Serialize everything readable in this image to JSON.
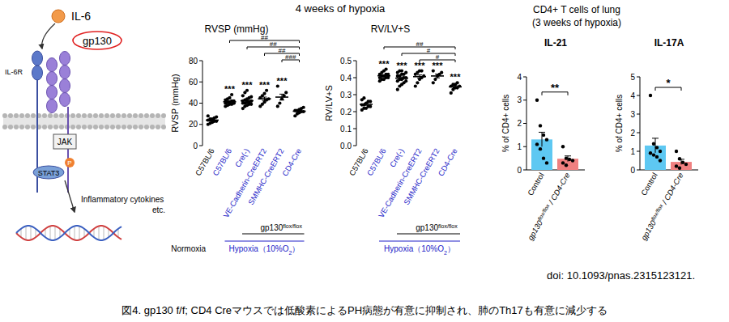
{
  "header": {
    "title": "4 weeks of hypoxia",
    "right_title": [
      "CD4+ T cells of lung",
      "(3 weeks of hypoxia)"
    ]
  },
  "diagram": {
    "ligand": "IL-6",
    "signal_receptor": "gp130",
    "receptor": "IL-6R",
    "kinase": "JAK",
    "factor": "STAT3",
    "phospho": "P",
    "output": [
      "Inflammatory cytokines",
      "etc."
    ]
  },
  "footer": {
    "doi": "doi: 10.1093/pnas.2315123121.",
    "caption": "図4. gp130 f/f; CD4 Creマウスでは低酸素によるPH病態が有意に抑制され、肺のTh17も有意に減少する"
  },
  "chart_data": [
    {
      "type": "dot",
      "title": "RVSP (mmHg)",
      "ylabel": "RVSP (mmHg)",
      "categories": [
        "C57BL/6",
        "C57BL/6",
        "Cre(-)",
        "VE-Cadherin-CreERT2",
        "SMMHC-CreERT2",
        "CD4-Cre"
      ],
      "values": [
        24.0,
        41.3,
        42.3,
        44.1,
        45.7,
        32.4
      ],
      "errors": [
        0.7,
        0.7,
        1.1,
        1.6,
        2.8,
        0.7
      ],
      "points": [
        [
          20,
          21,
          22,
          23,
          23,
          24,
          25,
          25,
          26,
          27,
          28,
          24
        ],
        [
          37,
          38,
          39,
          39,
          40,
          40,
          41,
          41,
          42,
          42,
          43,
          44,
          45,
          48,
          40
        ],
        [
          35,
          37,
          38,
          39,
          39,
          40,
          40,
          41,
          41,
          42,
          42,
          43,
          44,
          45,
          46,
          47,
          50,
          52
        ],
        [
          37,
          39,
          41,
          43,
          44,
          45,
          47,
          49,
          52
        ],
        [
          37,
          40,
          44,
          47,
          50,
          56
        ],
        [
          28,
          30,
          31,
          32,
          32,
          33,
          33,
          34,
          35,
          36
        ]
      ],
      "ylim": [
        0,
        80
      ],
      "yticks": [
        0,
        20,
        40,
        60,
        80
      ],
      "annotations": [
        {
          "category": 1,
          "text": "***"
        },
        {
          "category": 2,
          "text": "***"
        },
        {
          "category": 3,
          "text": "***"
        },
        {
          "category": 4,
          "text": "***"
        }
      ],
      "brackets": [
        {
          "from": 1,
          "to": 5,
          "text": "##"
        },
        {
          "from": 2,
          "to": 5,
          "text": "##"
        },
        {
          "from": 3,
          "to": 5,
          "text": "##"
        },
        {
          "from": 4,
          "to": 5,
          "text": "###"
        }
      ],
      "genotype": {
        "label": [
          {
            "text": "gp130"
          },
          {
            "text": "flox/flox",
            "sup": true
          }
        ],
        "from": 2,
        "to": 5
      },
      "groups": [
        {
          "label": "Normoxia",
          "from": 0,
          "to": 0,
          "color": "#000000"
        },
        {
          "label": [
            {
              "text": "Hypoxia（10%O"
            },
            {
              "text": "2",
              "sub": true
            },
            {
              "text": "）"
            }
          ],
          "from": 1,
          "to": 5,
          "color": "#2323c8"
        }
      ]
    },
    {
      "type": "dot",
      "title": "RV/LV+S",
      "ylabel": "RV/LV+S",
      "categories": [
        "C57BL/6",
        "C57BL/6",
        "Cre(-)",
        "VE-Cadherin-CreERT2",
        "SMMHC-CreERT2",
        "CD4-Cre"
      ],
      "values": [
        0.243,
        0.411,
        0.397,
        0.406,
        0.41,
        0.346
      ],
      "errors": [
        0.006,
        0.005,
        0.007,
        0.01,
        0.011,
        0.006
      ],
      "points": [
        [
          0.21,
          0.22,
          0.22,
          0.23,
          0.23,
          0.24,
          0.24,
          0.25,
          0.26,
          0.26,
          0.27,
          0.28
        ],
        [
          0.38,
          0.39,
          0.39,
          0.4,
          0.4,
          0.4,
          0.41,
          0.41,
          0.42,
          0.42,
          0.42,
          0.43,
          0.44,
          0.45,
          0.41
        ],
        [
          0.33,
          0.35,
          0.36,
          0.37,
          0.38,
          0.38,
          0.39,
          0.39,
          0.4,
          0.4,
          0.41,
          0.41,
          0.42,
          0.42,
          0.43,
          0.43,
          0.44,
          0.44
        ],
        [
          0.35,
          0.37,
          0.39,
          0.4,
          0.41,
          0.42,
          0.43,
          0.44,
          0.44
        ],
        [
          0.37,
          0.39,
          0.41,
          0.42,
          0.43,
          0.44
        ],
        [
          0.31,
          0.33,
          0.34,
          0.34,
          0.35,
          0.35,
          0.36,
          0.36,
          0.37
        ]
      ],
      "ylim": [
        0,
        0.5
      ],
      "yticks": [
        {
          "value": 0,
          "label": "0.0"
        },
        0.1,
        0.2,
        0.3,
        0.4,
        0.5
      ],
      "annotations": [
        {
          "category": 1,
          "text": "***"
        },
        {
          "category": 2,
          "text": "***"
        },
        {
          "category": 3,
          "text": "***"
        },
        {
          "category": 4,
          "text": "***"
        },
        {
          "category": 5,
          "text": "***"
        }
      ],
      "brackets": [
        {
          "from": 1,
          "to": 5,
          "text": "##"
        },
        {
          "from": 2,
          "to": 5,
          "text": "#"
        },
        {
          "from": 3,
          "to": 5,
          "text": "#"
        }
      ],
      "genotype": {
        "label": [
          {
            "text": "gp130"
          },
          {
            "text": "flox/flox",
            "sup": true
          }
        ],
        "from": 2,
        "to": 5
      },
      "groups": [
        {
          "label": [
            {
              "text": "Hypoxia（10%O"
            },
            {
              "text": "2",
              "sub": true
            },
            {
              "text": "）"
            }
          ],
          "from": 1,
          "to": 5,
          "color": "#2323c8"
        }
      ]
    },
    {
      "type": "bar",
      "title": "IL-21",
      "ylabel": "% of CD4+ cells",
      "categories": [
        "Control",
        [
          {
            "text": "gp130"
          },
          {
            "text": "flox/flox",
            "sup": true
          },
          {
            "text": " / CD4-Cre"
          }
        ]
      ],
      "values": [
        1.31,
        0.48
      ],
      "errors": [
        0.31,
        0.12
      ],
      "points": [
        [
          3.0,
          1.9,
          1.5,
          1.3,
          1.1,
          0.9,
          0.5,
          0.3
        ],
        [
          1.0,
          0.5,
          0.45,
          0.4,
          0.3,
          0.2
        ]
      ],
      "colors": [
        "#5ec8f2",
        "#f08080"
      ],
      "ylim": [
        0,
        4
      ],
      "yticks": [
        0,
        1,
        2,
        3,
        4
      ],
      "brackets": [
        {
          "from": 0,
          "to": 1,
          "text": "**"
        }
      ]
    },
    {
      "type": "bar",
      "title": "IL-17A",
      "ylabel": "% of CD4+ cells",
      "categories": [
        "Control",
        [
          {
            "text": "gp130"
          },
          {
            "text": "flox/flox",
            "sup": true
          },
          {
            "text": " / CD4-Cre"
          }
        ]
      ],
      "values": [
        1.31,
        0.43
      ],
      "errors": [
        0.39,
        0.14
      ],
      "points": [
        [
          4.0,
          1.4,
          1.2,
          1.0,
          0.9,
          0.8,
          0.7,
          0.5
        ],
        [
          1.0,
          0.6,
          0.4,
          0.3,
          0.2,
          0.1
        ]
      ],
      "colors": [
        "#5ec8f2",
        "#f08080"
      ],
      "ylim": [
        0,
        5
      ],
      "yticks": [
        0,
        1,
        2,
        3,
        4,
        5
      ],
      "brackets": [
        {
          "from": 0,
          "to": 1,
          "text": "*"
        }
      ]
    }
  ]
}
